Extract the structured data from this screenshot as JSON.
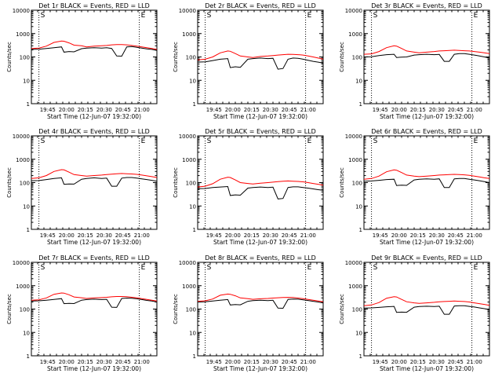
{
  "colors": {
    "events": "#000000",
    "lld": "#ff0000",
    "axis": "#000000",
    "background": "#ffffff"
  },
  "chart_data": [
    {
      "type": "line",
      "title": "Det 1r BLACK = Events, RED = LLD",
      "xlabel": "Start Time (12-Jun-07 19:32:00)",
      "ylabel": "Counts/sec",
      "yscale": "log",
      "ylim": [
        1,
        10000
      ],
      "xlim": [
        "19:32",
        "21:12"
      ],
      "xticks": [
        "19:45",
        "20:00",
        "20:15",
        "20:30",
        "20:45",
        "21:00"
      ],
      "yticks": [
        "1",
        "10",
        "100",
        "1000",
        "10000"
      ],
      "markers": [
        "S",
        "E"
      ],
      "marker_times": [
        "19:38",
        "20:58"
      ],
      "x": [
        "19:32",
        "19:38",
        "19:44",
        "19:50",
        "19:56",
        "19:58",
        "20:02",
        "20:06",
        "20:12",
        "20:16",
        "20:22",
        "20:28",
        "20:32",
        "20:36",
        "20:40",
        "20:44",
        "20:48",
        "20:52",
        "20:56",
        "21:00",
        "21:04",
        "21:08",
        "21:12"
      ],
      "series": [
        {
          "name": "Events",
          "color": "black",
          "values": [
            210,
            215,
            230,
            250,
            270,
            160,
            170,
            165,
            225,
            240,
            250,
            240,
            250,
            230,
            110,
            108,
            270,
            280,
            260,
            240,
            220,
            210,
            190
          ]
        },
        {
          "name": "LLD",
          "color": "red",
          "values": [
            230,
            240,
            290,
            420,
            480,
            470,
            400,
            320,
            300,
            270,
            290,
            300,
            310,
            330,
            340,
            340,
            330,
            310,
            290,
            270,
            250,
            230,
            210
          ]
        }
      ]
    },
    {
      "type": "line",
      "title": "Det 2r BLACK = Events, RED = LLD",
      "xlabel": "Start Time (12-Jun-07 19:32:00)",
      "ylabel": "Counts/sec",
      "yscale": "log",
      "ylim": [
        1,
        10000
      ],
      "xlim": [
        "19:32",
        "21:12"
      ],
      "xticks": [
        "19:45",
        "20:00",
        "20:15",
        "20:30",
        "20:45",
        "21:00"
      ],
      "yticks": [
        "1",
        "10",
        "100",
        "1000",
        "10000"
      ],
      "markers": [
        "S",
        "E"
      ],
      "marker_times": [
        "19:38",
        "20:58"
      ],
      "x": [
        "19:32",
        "19:38",
        "19:44",
        "19:50",
        "19:56",
        "19:58",
        "20:02",
        "20:06",
        "20:12",
        "20:16",
        "20:22",
        "20:28",
        "20:32",
        "20:36",
        "20:40",
        "20:44",
        "20:48",
        "20:52",
        "20:56",
        "21:00",
        "21:04",
        "21:08",
        "21:12"
      ],
      "series": [
        {
          "name": "Events",
          "color": "black",
          "values": [
            60,
            62,
            70,
            80,
            85,
            35,
            38,
            36,
            80,
            85,
            90,
            85,
            88,
            30,
            32,
            80,
            90,
            88,
            80,
            72,
            65,
            60,
            55
          ]
        },
        {
          "name": "LLD",
          "color": "red",
          "values": [
            75,
            80,
            100,
            150,
            180,
            175,
            140,
            110,
            100,
            95,
            105,
            110,
            115,
            120,
            125,
            130,
            128,
            125,
            120,
            110,
            100,
            90,
            80
          ]
        }
      ]
    },
    {
      "type": "line",
      "title": "Det 3r BLACK = Events, RED = LLD",
      "xlabel": "Start Time (12-Jun-07 19:32:00)",
      "ylabel": "Counts/sec",
      "yscale": "log",
      "ylim": [
        1,
        10000
      ],
      "xlim": [
        "19:32",
        "21:12"
      ],
      "xticks": [
        "19:45",
        "20:00",
        "20:15",
        "20:30",
        "20:45",
        "21:00"
      ],
      "yticks": [
        "1",
        "10",
        "100",
        "1000",
        "10000"
      ],
      "markers": [
        "S",
        "E"
      ],
      "marker_times": [
        "19:38",
        "20:58"
      ],
      "x": [
        "19:32",
        "19:38",
        "19:44",
        "19:50",
        "19:56",
        "19:58",
        "20:02",
        "20:06",
        "20:12",
        "20:16",
        "20:22",
        "20:28",
        "20:32",
        "20:36",
        "20:40",
        "20:44",
        "20:48",
        "20:52",
        "20:56",
        "21:00",
        "21:04",
        "21:08",
        "21:12"
      ],
      "series": [
        {
          "name": "Events",
          "color": "black",
          "values": [
            100,
            102,
            115,
            125,
            130,
            95,
            98,
            100,
            120,
            125,
            130,
            125,
            128,
            65,
            65,
            130,
            140,
            140,
            130,
            120,
            110,
            100,
            90
          ]
        },
        {
          "name": "LLD",
          "color": "red",
          "values": [
            130,
            135,
            170,
            250,
            300,
            290,
            230,
            180,
            160,
            150,
            160,
            170,
            180,
            185,
            190,
            195,
            190,
            185,
            180,
            170,
            160,
            150,
            140
          ]
        }
      ]
    },
    {
      "type": "line",
      "title": "Det 4r BLACK = Events, RED = LLD",
      "xlabel": "Start Time (12-Jun-07 19:32:00)",
      "ylabel": "Counts/sec",
      "yscale": "log",
      "ylim": [
        1,
        10000
      ],
      "xlim": [
        "19:32",
        "21:12"
      ],
      "xticks": [
        "19:45",
        "20:00",
        "20:15",
        "20:30",
        "20:45",
        "21:00"
      ],
      "yticks": [
        "1",
        "10",
        "100",
        "1000",
        "10000"
      ],
      "markers": [
        "S",
        "E"
      ],
      "marker_times": [
        "19:38",
        "20:58"
      ],
      "x": [
        "19:32",
        "19:38",
        "19:44",
        "19:50",
        "19:56",
        "19:58",
        "20:02",
        "20:06",
        "20:12",
        "20:16",
        "20:22",
        "20:28",
        "20:32",
        "20:36",
        "20:40",
        "20:44",
        "20:48",
        "20:52",
        "20:56",
        "21:00",
        "21:04",
        "21:08",
        "21:12"
      ],
      "series": [
        {
          "name": "Events",
          "color": "black",
          "values": [
            120,
            122,
            135,
            150,
            160,
            85,
            88,
            86,
            140,
            150,
            160,
            150,
            155,
            70,
            70,
            155,
            165,
            165,
            155,
            145,
            135,
            125,
            115
          ]
        },
        {
          "name": "LLD",
          "color": "red",
          "values": [
            150,
            160,
            200,
            300,
            360,
            350,
            280,
            220,
            200,
            190,
            200,
            210,
            220,
            230,
            240,
            245,
            240,
            235,
            225,
            210,
            195,
            180,
            165
          ]
        }
      ]
    },
    {
      "type": "line",
      "title": "Det 5r BLACK = Events, RED = LLD",
      "xlabel": "Start Time (12-Jun-07 19:32:00)",
      "ylabel": "Counts/sec",
      "yscale": "log",
      "ylim": [
        1,
        10000
      ],
      "xlim": [
        "19:32",
        "21:12"
      ],
      "xticks": [
        "19:45",
        "20:00",
        "20:15",
        "20:30",
        "20:45",
        "21:00"
      ],
      "yticks": [
        "1",
        "10",
        "100",
        "1000",
        "10000"
      ],
      "markers": [
        "S",
        "E"
      ],
      "marker_times": [
        "19:38",
        "20:58"
      ],
      "x": [
        "19:32",
        "19:38",
        "19:44",
        "19:50",
        "19:56",
        "19:58",
        "20:02",
        "20:06",
        "20:12",
        "20:16",
        "20:22",
        "20:28",
        "20:32",
        "20:36",
        "20:40",
        "20:44",
        "20:48",
        "20:52",
        "20:56",
        "21:00",
        "21:04",
        "21:08",
        "21:12"
      ],
      "series": [
        {
          "name": "Events",
          "color": "black",
          "values": [
            55,
            56,
            62,
            65,
            68,
            28,
            30,
            29,
            58,
            62,
            65,
            62,
            64,
            20,
            21,
            62,
            66,
            66,
            62,
            58,
            54,
            50,
            47
          ]
        },
        {
          "name": "LLD",
          "color": "red",
          "values": [
            65,
            70,
            90,
            140,
            170,
            165,
            130,
            100,
            92,
            88,
            95,
            100,
            105,
            110,
            115,
            118,
            115,
            112,
            108,
            100,
            92,
            85,
            78
          ]
        }
      ]
    },
    {
      "type": "line",
      "title": "Det 6r BLACK = Events, RED = LLD",
      "xlabel": "Start Time (12-Jun-07 19:32:00)",
      "ylabel": "Counts/sec",
      "yscale": "log",
      "ylim": [
        1,
        10000
      ],
      "xlim": [
        "19:32",
        "21:12"
      ],
      "xticks": [
        "19:45",
        "20:00",
        "20:15",
        "20:30",
        "20:45",
        "21:00"
      ],
      "yticks": [
        "1",
        "10",
        "100",
        "1000",
        "10000"
      ],
      "markers": [
        "S",
        "E"
      ],
      "marker_times": [
        "19:38",
        "20:58"
      ],
      "x": [
        "19:32",
        "19:38",
        "19:44",
        "19:50",
        "19:56",
        "19:58",
        "20:02",
        "20:06",
        "20:12",
        "20:16",
        "20:22",
        "20:28",
        "20:32",
        "20:36",
        "20:40",
        "20:44",
        "20:48",
        "20:52",
        "20:56",
        "21:00",
        "21:04",
        "21:08",
        "21:12"
      ],
      "series": [
        {
          "name": "Events",
          "color": "black",
          "values": [
            115,
            118,
            125,
            135,
            140,
            75,
            78,
            76,
            130,
            140,
            145,
            140,
            145,
            62,
            62,
            145,
            150,
            150,
            140,
            130,
            120,
            110,
            100
          ]
        },
        {
          "name": "LLD",
          "color": "red",
          "values": [
            140,
            150,
            190,
            290,
            350,
            340,
            270,
            210,
            190,
            180,
            190,
            200,
            210,
            215,
            220,
            225,
            220,
            215,
            205,
            190,
            175,
            160,
            150
          ]
        }
      ]
    },
    {
      "type": "line",
      "title": "Det 7r BLACK = Events, RED = LLD",
      "xlabel": "Start Time (12-Jun-07 19:32:00)",
      "ylabel": "Counts/sec",
      "yscale": "log",
      "ylim": [
        1,
        10000
      ],
      "xlim": [
        "19:32",
        "21:12"
      ],
      "xticks": [
        "19:45",
        "20:00",
        "20:15",
        "20:30",
        "20:45",
        "21:00"
      ],
      "yticks": [
        "1",
        "10",
        "100",
        "1000",
        "10000"
      ],
      "markers": [
        "S",
        "E"
      ],
      "marker_times": [
        "19:38",
        "20:58"
      ],
      "x": [
        "19:32",
        "19:38",
        "19:44",
        "19:50",
        "19:56",
        "19:58",
        "20:02",
        "20:06",
        "20:12",
        "20:16",
        "20:22",
        "20:28",
        "20:32",
        "20:36",
        "20:40",
        "20:44",
        "20:48",
        "20:52",
        "20:56",
        "21:00",
        "21:04",
        "21:08",
        "21:12"
      ],
      "series": [
        {
          "name": "Events",
          "color": "black",
          "values": [
            220,
            225,
            240,
            260,
            280,
            170,
            175,
            172,
            240,
            255,
            265,
            255,
            262,
            120,
            118,
            285,
            295,
            290,
            275,
            255,
            235,
            220,
            200
          ]
        },
        {
          "name": "LLD",
          "color": "red",
          "values": [
            240,
            250,
            300,
            430,
            490,
            480,
            410,
            330,
            305,
            285,
            300,
            310,
            320,
            335,
            345,
            345,
            340,
            320,
            300,
            280,
            260,
            240,
            220
          ]
        }
      ]
    },
    {
      "type": "line",
      "title": "Det 8r BLACK = Events, RED = LLD",
      "xlabel": "Start Time (12-Jun-07 19:32:00)",
      "ylabel": "Counts/sec",
      "yscale": "log",
      "ylim": [
        1,
        10000
      ],
      "xlim": [
        "19:32",
        "21:12"
      ],
      "xticks": [
        "19:45",
        "20:00",
        "20:15",
        "20:30",
        "20:45",
        "21:00"
      ],
      "yticks": [
        "1",
        "10",
        "100",
        "1000",
        "10000"
      ],
      "markers": [
        "S",
        "E"
      ],
      "marker_times": [
        "19:38",
        "20:58"
      ],
      "x": [
        "19:32",
        "19:38",
        "19:44",
        "19:50",
        "19:56",
        "19:58",
        "20:02",
        "20:06",
        "20:12",
        "20:16",
        "20:22",
        "20:28",
        "20:32",
        "20:36",
        "20:40",
        "20:44",
        "20:48",
        "20:52",
        "20:56",
        "21:00",
        "21:04",
        "21:08",
        "21:12"
      ],
      "series": [
        {
          "name": "Events",
          "color": "black",
          "values": [
            200,
            205,
            220,
            240,
            255,
            150,
            155,
            152,
            215,
            230,
            240,
            230,
            238,
            110,
            108,
            260,
            270,
            265,
            250,
            232,
            215,
            200,
            182
          ]
        },
        {
          "name": "LLD",
          "color": "red",
          "values": [
            215,
            225,
            270,
            390,
            440,
            430,
            370,
            300,
            280,
            262,
            275,
            285,
            295,
            305,
            315,
            318,
            312,
            295,
            278,
            260,
            240,
            222,
            205
          ]
        }
      ]
    },
    {
      "type": "line",
      "title": "Det 9r BLACK = Events, RED = LLD",
      "xlabel": "Start Time (12-Jun-07 19:32:00)",
      "ylabel": "Counts/sec",
      "yscale": "log",
      "ylim": [
        1,
        10000
      ],
      "xlim": [
        "19:32",
        "21:12"
      ],
      "xticks": [
        "19:45",
        "20:00",
        "20:15",
        "20:30",
        "20:45",
        "21:00"
      ],
      "yticks": [
        "1",
        "10",
        "100",
        "1000",
        "10000"
      ],
      "markers": [
        "S",
        "E"
      ],
      "marker_times": [
        "19:38",
        "20:58"
      ],
      "x": [
        "19:32",
        "19:38",
        "19:44",
        "19:50",
        "19:56",
        "19:58",
        "20:02",
        "20:06",
        "20:12",
        "20:16",
        "20:22",
        "20:28",
        "20:32",
        "20:36",
        "20:40",
        "20:44",
        "20:48",
        "20:52",
        "20:56",
        "21:00",
        "21:04",
        "21:08",
        "21:12"
      ],
      "series": [
        {
          "name": "Events",
          "color": "black",
          "values": [
            110,
            112,
            118,
            125,
            130,
            72,
            74,
            73,
            120,
            128,
            132,
            128,
            132,
            60,
            60,
            135,
            140,
            140,
            130,
            122,
            112,
            104,
            95
          ]
        },
        {
          "name": "LLD",
          "color": "red",
          "values": [
            140,
            150,
            190,
            290,
            340,
            330,
            260,
            205,
            185,
            175,
            185,
            195,
            205,
            210,
            215,
            220,
            215,
            210,
            200,
            185,
            170,
            158,
            145
          ]
        }
      ]
    }
  ]
}
